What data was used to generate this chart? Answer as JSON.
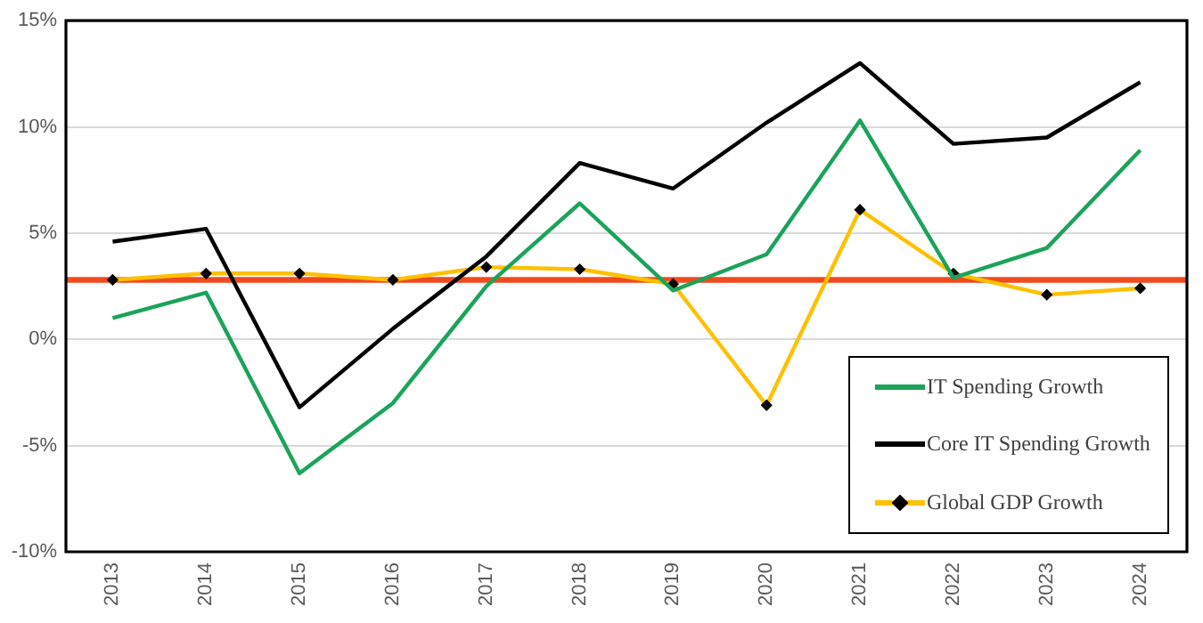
{
  "chart_data": {
    "type": "line",
    "categories": [
      "2013",
      "2014",
      "2015",
      "2016",
      "2017",
      "2018",
      "2019",
      "2020",
      "2021",
      "2022",
      "2023",
      "2024"
    ],
    "series": [
      {
        "name": "IT Spending Growth",
        "color": "#1ba35a",
        "values": [
          1.0,
          2.2,
          -6.3,
          -3.0,
          2.5,
          6.4,
          2.3,
          4.0,
          10.3,
          2.9,
          4.3,
          8.9
        ]
      },
      {
        "name": "Core IT Spending Growth",
        "color": "#000000",
        "values": [
          4.6,
          5.2,
          -3.2,
          0.5,
          3.9,
          8.3,
          7.1,
          10.2,
          13.0,
          9.2,
          9.5,
          12.1
        ]
      },
      {
        "name": "Global GDP Growth",
        "color": "#ffc000",
        "marker": "diamond",
        "colors": [
          "#000000",
          "#000000",
          "#000000",
          "#000000",
          "#000000",
          "#000000",
          "#000000",
          "#000000",
          "#000000",
          "#000000",
          "#000000",
          "#000000"
        ],
        "values": [
          2.8,
          3.1,
          3.1,
          2.8,
          3.4,
          3.3,
          2.6,
          -3.1,
          6.1,
          3.1,
          2.1,
          2.4
        ]
      }
    ],
    "ylim": [
      -10,
      15
    ],
    "yticks": [
      {
        "value": -10,
        "label": "-10%"
      },
      {
        "value": -5,
        "label": "-5%"
      },
      {
        "value": 0,
        "label": "0%"
      },
      {
        "value": 5,
        "label": "5%"
      },
      {
        "value": 10,
        "label": "10%"
      },
      {
        "value": 15,
        "label": "15%"
      }
    ],
    "ref_lines": [
      {
        "axis": "y",
        "value": 2.8,
        "color": "#f04a1f"
      }
    ],
    "grid": "y",
    "legend": "bottom right"
  }
}
